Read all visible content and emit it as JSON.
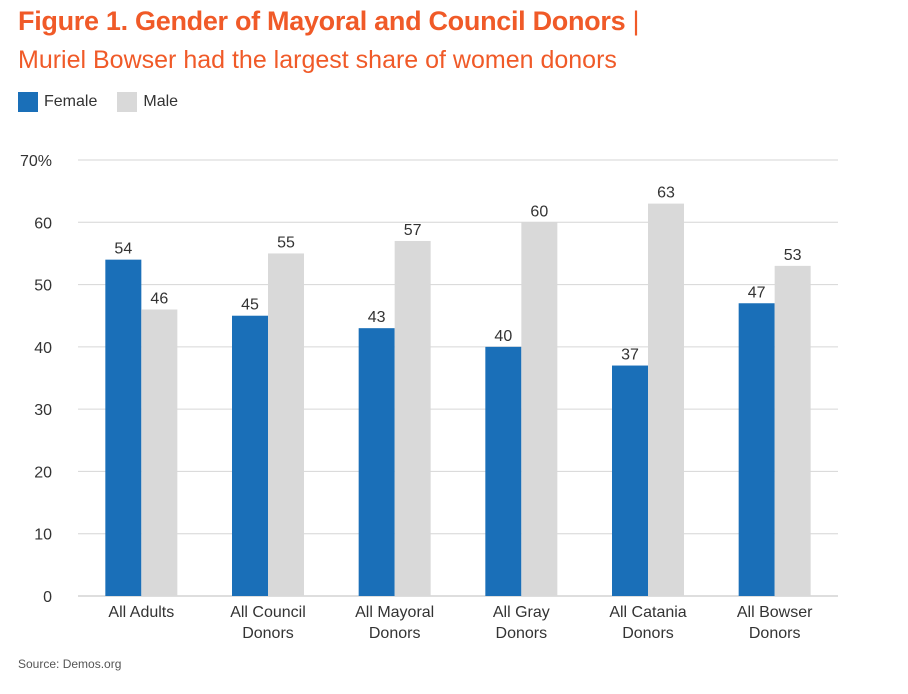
{
  "figure": {
    "title": "Figure 1. Gender of Mayoral and Council Donors",
    "title_separator": "|",
    "subtitle": "Muriel Bowser had the largest share of women donors",
    "source": "Source: Demos.org"
  },
  "colors": {
    "female": "#1a6fb8",
    "male": "#d9d9d9",
    "accent": "#f05a28",
    "grid": "#d6d6d6"
  },
  "chart_data": {
    "type": "bar",
    "title": "Figure 1. Gender of Mayoral and Council Donors | Muriel Bowser had the largest share of women donors",
    "categories": [
      [
        "All Adults"
      ],
      [
        "All Council",
        "Donors"
      ],
      [
        "All Mayoral",
        "Donors"
      ],
      [
        "All Gray",
        "Donors"
      ],
      [
        "All Catania",
        "Donors"
      ],
      [
        "All Bowser",
        "Donors"
      ]
    ],
    "series": [
      {
        "name": "Female",
        "values": [
          54,
          45,
          43,
          40,
          37,
          47
        ]
      },
      {
        "name": "Male",
        "values": [
          46,
          55,
          57,
          60,
          63,
          53
        ]
      }
    ],
    "data_labels": [
      [
        "54",
        "45",
        "43",
        "40",
        "37",
        "47"
      ],
      [
        "46",
        "55",
        "57",
        "60",
        "63",
        "53"
      ]
    ],
    "yticks": [
      "0",
      "10",
      "20",
      "30",
      "40",
      "50",
      "60",
      "70%"
    ],
    "ylim": [
      0,
      70
    ],
    "grid": true,
    "legend_position": "top-left"
  }
}
